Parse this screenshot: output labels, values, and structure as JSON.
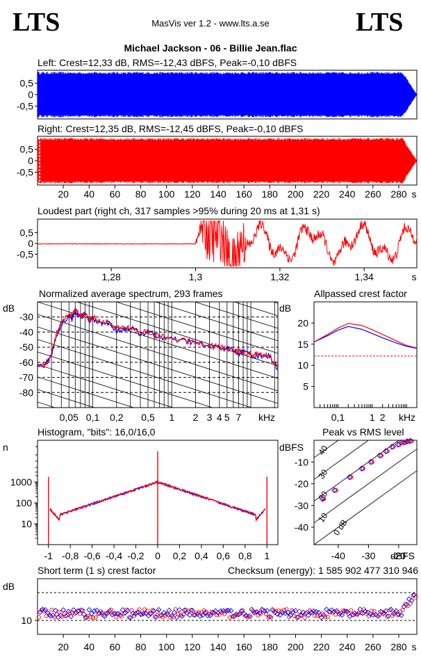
{
  "header": {
    "logo_left": "LTS",
    "logo_right": "LTS",
    "app_title": "MasVis ver 1.2 - www.lts.a.se",
    "file_title": "Michael Jackson - 06 - Billie Jean.flac"
  },
  "colors": {
    "left": "#0000ff",
    "right": "#ff0000",
    "grid": "#000000"
  },
  "chart_data": [
    {
      "id": "waveform-left",
      "type": "area",
      "title": "Left: Crest=12,33 dB, RMS=-12,43 dBFS, Peak=-0,10 dBFS",
      "yticks": [
        "0,5",
        "0",
        "-0,5"
      ],
      "ylim": [
        -1,
        1
      ],
      "xlim": [
        0,
        294
      ],
      "envelope": {
        "full_scale_until_s": 283,
        "fade_out_end_s": 294,
        "peak": 0.99
      }
    },
    {
      "id": "waveform-right",
      "type": "area",
      "title": "Right: Crest=12,35 dB, RMS=-12,45 dBFS, Peak=-0,10 dBFS",
      "yticks": [
        "0,5",
        "0",
        "-0,5"
      ],
      "xticks": [
        "20",
        "40",
        "60",
        "80",
        "100",
        "120",
        "140",
        "160",
        "180",
        "200",
        "220",
        "240",
        "260",
        "280",
        "s"
      ],
      "xtick_values": [
        20,
        40,
        60,
        80,
        100,
        120,
        140,
        160,
        180,
        200,
        220,
        240,
        260,
        280
      ],
      "ylim": [
        -1,
        1
      ],
      "xlim": [
        0,
        294
      ]
    },
    {
      "id": "loudest-part",
      "type": "line",
      "title": "Loudest part (right ch, 317 samples >95% during 20 ms at 1,31 s)",
      "yticks": [
        "0,5",
        "0",
        "-0,5"
      ],
      "xticks": [
        "1,28",
        "1,3",
        "1,32",
        "1,34",
        "s"
      ],
      "xtick_values": [
        1.28,
        1.3,
        1.32,
        1.34
      ],
      "xlim": [
        1.2625,
        1.3525
      ],
      "ylim": [
        -1,
        1
      ]
    },
    {
      "id": "average-spectrum",
      "type": "line",
      "title": "Normalized average spectrum, 293 frames",
      "ylabel": "dB",
      "yticks": [
        "-30",
        "-40",
        "-50",
        "-60",
        "-70",
        "-80"
      ],
      "ytick_values": [
        -30,
        -40,
        -50,
        -60,
        -70,
        -80
      ],
      "xticks": [
        "0,05",
        "0,1",
        "0,2",
        "0,5",
        "1",
        "2",
        "3",
        "4",
        "5",
        "7",
        "kHz"
      ],
      "xtick_values": [
        0.05,
        0.1,
        0.2,
        0.5,
        1,
        2,
        3,
        4,
        5,
        7
      ],
      "xlim_khz": [
        0.02,
        22
      ],
      "ylim": [
        -90,
        -20
      ],
      "series": [
        {
          "color": "#0000ff",
          "x_khz": [
            0.02,
            0.025,
            0.03,
            0.035,
            0.04,
            0.05,
            0.055,
            0.06,
            0.07,
            0.08,
            0.09,
            0.1,
            0.12,
            0.15,
            0.2,
            0.25,
            0.3,
            0.4,
            0.5,
            0.7,
            1,
            1.5,
            2,
            3,
            4,
            5,
            6,
            7,
            8,
            10,
            12,
            15,
            18,
            22
          ],
          "db": [
            -63,
            -62,
            -55,
            -42,
            -35,
            -29,
            -31,
            -26,
            -30,
            -28,
            -33,
            -31,
            -34,
            -33,
            -39,
            -38,
            -37,
            -41,
            -40,
            -43,
            -45,
            -46,
            -47,
            -50,
            -50,
            -51,
            -52,
            -54,
            -53,
            -55,
            -56,
            -55,
            -57,
            -64
          ]
        },
        {
          "color": "#ff0000",
          "x_khz": [
            0.02,
            0.025,
            0.03,
            0.035,
            0.04,
            0.05,
            0.055,
            0.06,
            0.07,
            0.08,
            0.09,
            0.1,
            0.12,
            0.15,
            0.2,
            0.25,
            0.3,
            0.4,
            0.5,
            0.7,
            1,
            1.5,
            2,
            3,
            4,
            5,
            6,
            7,
            8,
            10,
            12,
            15,
            18,
            22
          ],
          "db": [
            -63,
            -62,
            -55,
            -41,
            -34,
            -28,
            -30,
            -25,
            -29,
            -28,
            -32,
            -30,
            -33,
            -33,
            -38,
            -37,
            -37,
            -40,
            -40,
            -43,
            -44,
            -46,
            -47,
            -49,
            -50,
            -51,
            -52,
            -53,
            -53,
            -55,
            -55,
            -55,
            -57,
            -64
          ]
        }
      ]
    },
    {
      "id": "allpassed-crest",
      "type": "line",
      "title": "Allpassed crest factor",
      "ylabel": "dB",
      "yticks": [
        "20",
        "15",
        "10",
        "5"
      ],
      "ytick_values": [
        20,
        15,
        10,
        5
      ],
      "xticks": [
        "0,1",
        "1",
        "2",
        "kHz"
      ],
      "xtick_values": [
        0.1,
        1,
        2
      ],
      "xlim_khz": [
        0.02,
        20
      ],
      "ylim": [
        0,
        25
      ],
      "reference_db": 12.2,
      "series": [
        {
          "color": "#0000ff",
          "x_khz": [
            0.02,
            0.05,
            0.1,
            0.2,
            0.5,
            1,
            2,
            5,
            10,
            20
          ],
          "db": [
            15.5,
            17,
            18.3,
            19.2,
            18.5,
            17.5,
            16.5,
            15.3,
            14.5,
            14
          ]
        },
        {
          "color": "#ff0000",
          "x_khz": [
            0.02,
            0.05,
            0.1,
            0.2,
            0.5,
            1,
            2,
            5,
            10,
            20
          ],
          "db": [
            15.5,
            17.3,
            18.8,
            19.9,
            19.4,
            18.4,
            17.3,
            15.8,
            14.7,
            14.1
          ]
        }
      ]
    },
    {
      "id": "histogram",
      "type": "line",
      "title": "Histogram, \"bits\": 16,0/16,0",
      "ylabel": "n",
      "yticks": [
        "1000",
        "100",
        "10"
      ],
      "ytick_values": [
        1000,
        100,
        10
      ],
      "xticks": [
        "-1",
        "-0,8",
        "-0,6",
        "-0,4",
        "-0,2",
        "0",
        "0,2",
        "0,4",
        "0,6",
        "0,8",
        "1"
      ],
      "xtick_values": [
        -1,
        -0.8,
        -0.6,
        -0.4,
        -0.2,
        0,
        0.2,
        0.4,
        0.6,
        0.8,
        1
      ],
      "xlim": [
        -1.1,
        1.1
      ],
      "ylim_log": [
        1,
        100000
      ]
    },
    {
      "id": "peak-vs-rms",
      "type": "scatter",
      "title": "Peak vs RMS level",
      "ylabel": "dBFS",
      "xlabel": "dBFS",
      "yticks": [
        "-10",
        "-20",
        "-30",
        "-40"
      ],
      "ytick_values": [
        -10,
        -20,
        -30,
        -40
      ],
      "xticks": [
        "-40",
        "-30",
        "-20"
      ],
      "xtick_values": [
        -40,
        -30,
        -20
      ],
      "xlim": [
        -48,
        -14
      ],
      "ylim": [
        -48,
        0
      ],
      "diagonal_labels": [
        "40",
        "30",
        "20",
        "10",
        "0 dB"
      ],
      "series": [
        {
          "color": "#0000ff",
          "points": [
            [
              -45,
              -27
            ],
            [
              -41,
              -23
            ],
            [
              -36,
              -17
            ],
            [
              -32,
              -13
            ],
            [
              -29,
              -10
            ],
            [
              -26,
              -7
            ],
            [
              -24,
              -5
            ],
            [
              -22,
              -3
            ],
            [
              -20,
              -2
            ],
            [
              -19,
              -1
            ],
            [
              -18,
              -1
            ],
            [
              -17,
              -0.5
            ],
            [
              -16,
              -0.3
            ]
          ]
        },
        {
          "color": "#ff0000",
          "points": [
            [
              -45,
              -27
            ],
            [
              -41,
              -23
            ],
            [
              -36,
              -17
            ],
            [
              -32,
              -13
            ],
            [
              -29,
              -10
            ],
            [
              -26,
              -7
            ],
            [
              -24,
              -5
            ],
            [
              -22,
              -3
            ],
            [
              -20,
              -2
            ],
            [
              -19,
              -1
            ],
            [
              -18,
              -1
            ],
            [
              -17,
              -0.5
            ],
            [
              -16,
              -0.3
            ]
          ]
        }
      ]
    },
    {
      "id": "short-term-crest",
      "type": "scatter",
      "title": "Short term (1 s) crest factor",
      "checksum": "Checksum (energy):  1 585 902 477 310 946",
      "ylabel": "dB",
      "yticks": [
        "10"
      ],
      "ytick_values": [
        10
      ],
      "xticks": [
        "20",
        "40",
        "60",
        "80",
        "100",
        "120",
        "140",
        "160",
        "180",
        "200",
        "220",
        "240",
        "260",
        "280",
        "s"
      ],
      "xtick_values": [
        20,
        40,
        60,
        80,
        100,
        120,
        140,
        160,
        180,
        200,
        220,
        240,
        260,
        280
      ],
      "xlim": [
        0,
        294
      ],
      "ylim": [
        5,
        25
      ],
      "reference_lines_db": [
        10,
        20
      ],
      "typical_db": 12.5,
      "fade_rise_db": [
        15,
        17,
        19
      ]
    }
  ]
}
